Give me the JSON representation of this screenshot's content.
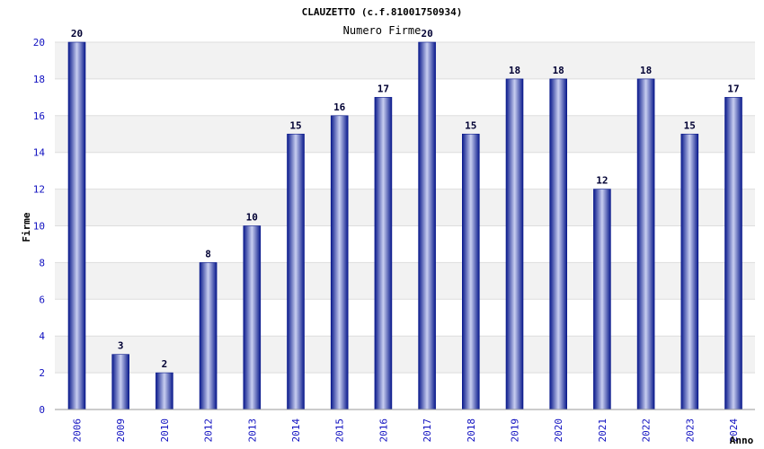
{
  "chart_data": {
    "type": "bar",
    "title": "CLAUZETTO (c.f.81001750934)",
    "subtitle": "Numero Firme",
    "xlabel": "Anno",
    "ylabel": "Firme",
    "categories": [
      "2006",
      "2009",
      "2010",
      "2012",
      "2013",
      "2014",
      "2015",
      "2016",
      "2017",
      "2018",
      "2019",
      "2020",
      "2021",
      "2022",
      "2023",
      "2024"
    ],
    "values": [
      20,
      3,
      2,
      8,
      10,
      15,
      16,
      17,
      20,
      15,
      18,
      18,
      12,
      18,
      15,
      17
    ],
    "ylim": [
      0,
      20
    ],
    "yticks": [
      0,
      2,
      4,
      6,
      8,
      10,
      12,
      14,
      16,
      18,
      20
    ],
    "grid": true
  },
  "colors": {
    "bar_dark": "#0a1a8c",
    "bar_light": "#c8cef0",
    "band": "#f2f2f2",
    "grid": "#dddddd",
    "tick_text": "#1010c0"
  }
}
